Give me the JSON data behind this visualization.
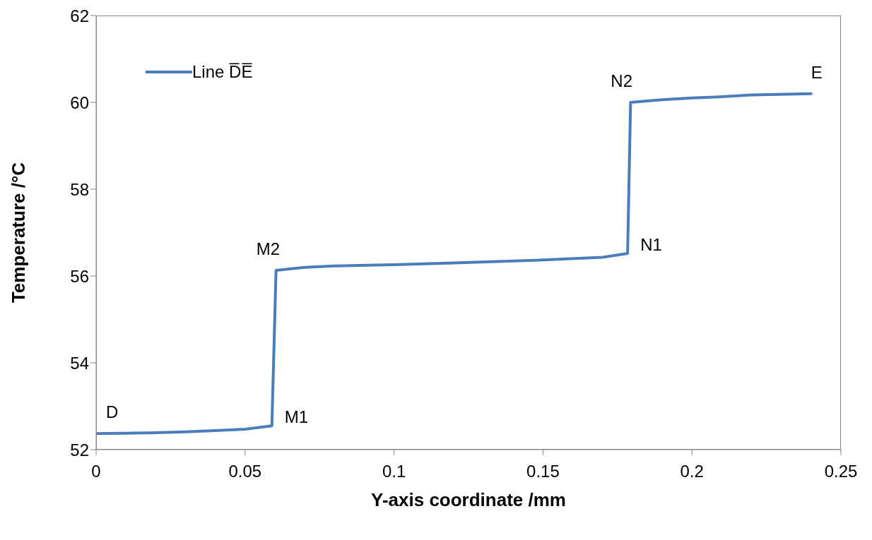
{
  "chart_data": {
    "type": "line",
    "xlabel": "Y-axis coordinate /mm",
    "ylabel": "Temperature /°C",
    "x": [
      0,
      0.01,
      0.02,
      0.03,
      0.04,
      0.05,
      0.059,
      0.0604,
      0.07,
      0.08,
      0.1,
      0.12,
      0.15,
      0.17,
      0.1784,
      0.1794,
      0.19,
      0.2,
      0.21,
      0.22,
      0.24
    ],
    "series": [
      {
        "name": "Line D̅E̅",
        "color": "#4a7ebb",
        "values": [
          52.37,
          52.38,
          52.39,
          52.41,
          52.44,
          52.47,
          52.55,
          56.13,
          56.2,
          56.23,
          56.26,
          56.3,
          56.37,
          56.43,
          56.52,
          60.0,
          60.06,
          60.1,
          60.13,
          60.17,
          60.2
        ]
      }
    ],
    "xlim": [
      0,
      0.25
    ],
    "xticks": [
      0,
      0.05,
      0.1,
      0.15,
      0.2,
      0.25
    ],
    "ylim": [
      52,
      62
    ],
    "yticks": [
      52,
      54,
      56,
      58,
      60,
      62
    ],
    "grid": false,
    "legend": "top left",
    "marker": "none",
    "line_style": "solid",
    "annotations": [
      {
        "text": "D",
        "x": 0,
        "y": 52.37
      },
      {
        "text": "M1",
        "x": 0.059,
        "y": 52.55
      },
      {
        "text": "M2",
        "x": 0.0604,
        "y": 56.13
      },
      {
        "text": "N1",
        "x": 0.1784,
        "y": 56.52
      },
      {
        "text": "N2",
        "x": 0.1794,
        "y": 60.0
      },
      {
        "text": "E",
        "x": 0.24,
        "y": 60.2
      }
    ]
  }
}
